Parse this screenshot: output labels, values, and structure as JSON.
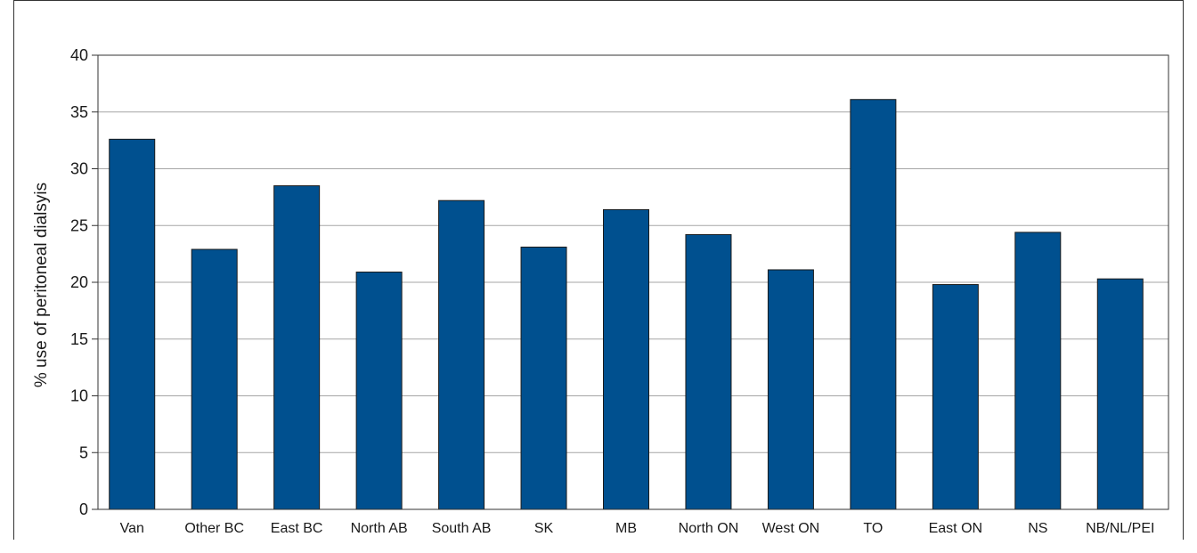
{
  "chart_data": {
    "type": "bar",
    "title": "",
    "xlabel": "",
    "ylabel": "% use of peritoneal dialsyis",
    "ylim": [
      0,
      40
    ],
    "yticks": [
      0,
      5,
      10,
      15,
      20,
      25,
      30,
      35,
      40
    ],
    "grid": true,
    "bar_color": "#00508f",
    "categories": [
      "Van",
      "Other BC",
      "East BC",
      "North AB",
      "South AB",
      "SK",
      "MB",
      "North ON",
      "West ON",
      "TO",
      "East ON",
      "NS",
      "NB/NL/PEI"
    ],
    "values": [
      32.6,
      22.9,
      28.5,
      20.9,
      27.2,
      23.1,
      26.4,
      24.2,
      21.1,
      36.1,
      19.8,
      24.4,
      20.3
    ]
  }
}
